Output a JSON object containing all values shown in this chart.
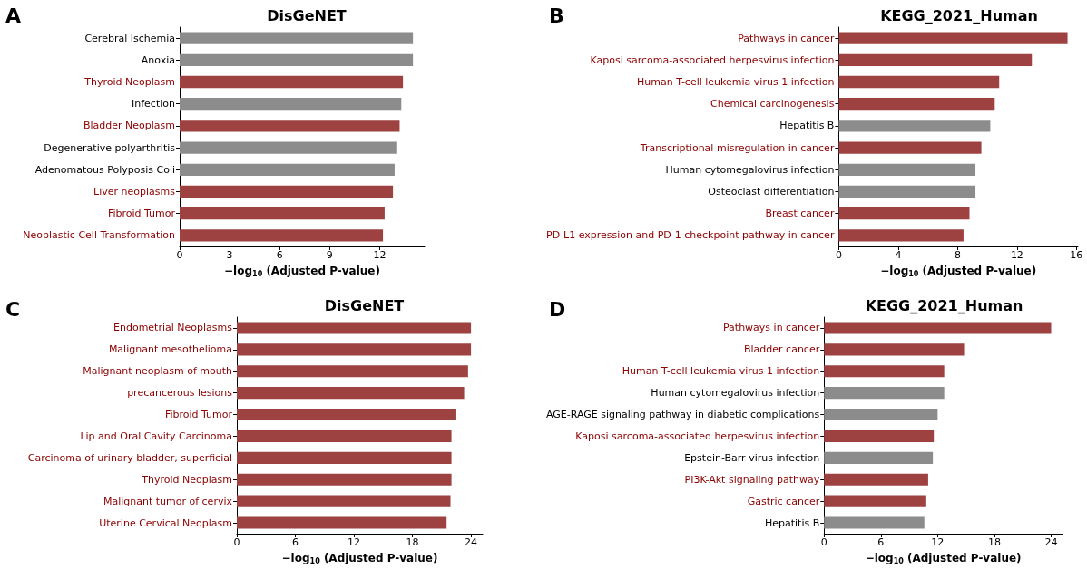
{
  "chart_data": [
    {
      "type": "bar",
      "orientation": "horizontal",
      "title": "DisGeNET",
      "annotations": [
        "A"
      ],
      "xlabel": "−log$_{10}$ (Adjusted P-value)",
      "categories": [
        "Cerebral Ischemia",
        "Anoxia",
        "Thyroid Neoplasm",
        "Infection",
        "Bladder Neoplasm",
        "Degenerative polyarthritis",
        "Adenomatous Polyposis Coli",
        "Liver neoplasms",
        "Fibroid Tumor",
        "Neoplastic Cell Transformation"
      ],
      "values": [
        14.0,
        14.0,
        13.4,
        13.3,
        13.2,
        13.0,
        12.9,
        12.8,
        12.3,
        12.2
      ],
      "colors": [
        "#8c8c8c",
        "#8c8c8c",
        "#9e4141",
        "#8c8c8c",
        "#9e4141",
        "#8c8c8c",
        "#8c8c8c",
        "#9e4141",
        "#9e4141",
        "#9e4141"
      ],
      "xlim": [
        0,
        14.7
      ],
      "xticks": [
        0,
        3,
        6,
        9,
        12
      ],
      "grid": false
    },
    {
      "type": "bar",
      "orientation": "horizontal",
      "title": "KEGG_2021_Human",
      "annotations": [
        "B"
      ],
      "xlabel": "−log$_{10}$ (Adjusted P-value)",
      "categories": [
        "Pathways in cancer",
        "Kaposi sarcoma-associated herpesvirus infection",
        "Human T-cell leukemia virus 1 infection",
        "Chemical carcinogenesis",
        "Hepatitis B",
        "Transcriptional misregulation in cancer",
        "Human cytomegalovirus infection",
        "Osteoclast differentiation",
        "Breast cancer",
        "PD-L1 expression and PD-1 checkpoint pathway in cancer"
      ],
      "values": [
        15.4,
        13.0,
        10.8,
        10.5,
        10.2,
        9.6,
        9.2,
        9.2,
        8.8,
        8.4
      ],
      "colors": [
        "#9e4141",
        "#9e4141",
        "#9e4141",
        "#9e4141",
        "#8c8c8c",
        "#9e4141",
        "#8c8c8c",
        "#8c8c8c",
        "#9e4141",
        "#9e4141"
      ],
      "xlim": [
        0,
        16.1
      ],
      "xticks": [
        0,
        4,
        8,
        12,
        16
      ],
      "grid": false
    },
    {
      "type": "bar",
      "orientation": "horizontal",
      "title": "DisGeNET",
      "annotations": [
        "C"
      ],
      "xlabel": "−log$_{10}$ (Adjusted P-value)",
      "categories": [
        "Endometrial Neoplasms",
        "Malignant mesothelioma",
        "Malignant neoplasm of mouth",
        "precancerous lesions",
        "Fibroid Tumor",
        "Lip and Oral Cavity Carcinoma",
        "Carcinoma of urinary bladder, superficial",
        "Thyroid Neoplasm",
        "Malignant tumor of cervix",
        "Uterine Cervical Neoplasm"
      ],
      "values": [
        24.0,
        24.0,
        23.7,
        23.3,
        22.5,
        22.0,
        22.0,
        22.0,
        21.9,
        21.5
      ],
      "colors": [
        "#9e4141",
        "#9e4141",
        "#9e4141",
        "#9e4141",
        "#9e4141",
        "#9e4141",
        "#9e4141",
        "#9e4141",
        "#9e4141",
        "#9e4141"
      ],
      "xlim": [
        0,
        25.2
      ],
      "xticks": [
        0,
        6,
        12,
        18,
        24
      ],
      "grid": false
    },
    {
      "type": "bar",
      "orientation": "horizontal",
      "title": "KEGG_2021_Human",
      "annotations": [
        "D"
      ],
      "xlabel": "−log$_{10}$ (Adjusted P-value)",
      "categories": [
        "Pathways in cancer",
        "Bladder cancer",
        "Human T-cell leukemia virus 1 infection",
        "Human cytomegalovirus infection",
        "AGE-RAGE signaling pathway in diabetic complications",
        "Kaposi sarcoma-associated herpesvirus infection",
        "Epstein-Barr virus infection",
        "PI3K-Akt signaling pathway",
        "Gastric cancer",
        "Hepatitis B"
      ],
      "values": [
        24.0,
        14.8,
        12.7,
        12.7,
        12.0,
        11.6,
        11.5,
        11.0,
        10.8,
        10.6
      ],
      "colors": [
        "#9e4141",
        "#9e4141",
        "#9e4141",
        "#8c8c8c",
        "#8c8c8c",
        "#9e4141",
        "#8c8c8c",
        "#9e4141",
        "#9e4141",
        "#8c8c8c"
      ],
      "xlim": [
        0,
        25.2
      ],
      "xticks": [
        0,
        6,
        12,
        18,
        24
      ],
      "grid": false
    }
  ]
}
